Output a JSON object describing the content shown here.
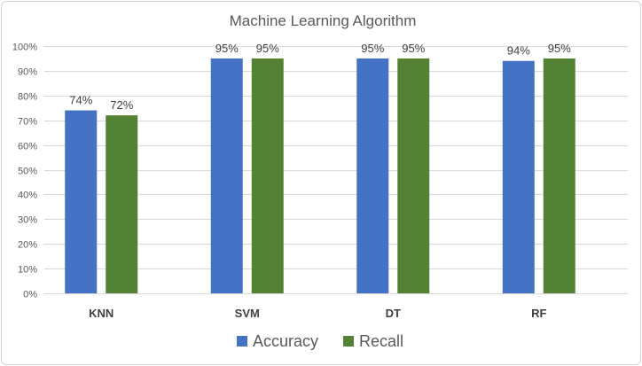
{
  "chart_data": {
    "type": "bar",
    "title": "Machine Learning Algorithm",
    "xlabel": "",
    "ylabel": "",
    "categories": [
      "KNN",
      "SVM",
      "DT",
      "RF"
    ],
    "series": [
      {
        "name": "Accuracy",
        "values": [
          74,
          95,
          95,
          94
        ],
        "labels": [
          "74%",
          "95%",
          "95%",
          "94%"
        ],
        "color": "#4472c4"
      },
      {
        "name": "Recall",
        "values": [
          72,
          95,
          95,
          95
        ],
        "labels": [
          "72%",
          "95%",
          "95%",
          "95%"
        ],
        "color": "#548235"
      }
    ],
    "ylim": [
      0,
      100
    ],
    "yticks": [
      0,
      10,
      20,
      30,
      40,
      50,
      60,
      70,
      80,
      90,
      100
    ],
    "ytick_labels": [
      "0%",
      "10%",
      "20%",
      "30%",
      "40%",
      "50%",
      "60%",
      "70%",
      "80%",
      "90%",
      "100%"
    ],
    "grid": true,
    "legend_position": "bottom"
  }
}
